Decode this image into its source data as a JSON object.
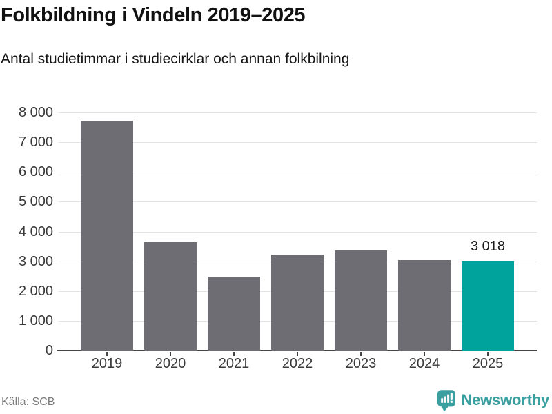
{
  "header": {
    "title": "Folkbildning i Vindeln 2019–2025",
    "subtitle": "Antal studietimmar i studiecirklar och annan folkbilning"
  },
  "chart_data": {
    "type": "bar",
    "title": "Folkbildning i Vindeln 2019–2025",
    "subtitle": "Antal studietimmar i studiecirklar och annan folkbilning",
    "categories": [
      "2019",
      "2020",
      "2021",
      "2022",
      "2023",
      "2024",
      "2025"
    ],
    "values": [
      7730,
      3650,
      2480,
      3230,
      3370,
      3040,
      3018
    ],
    "ylim": [
      0,
      8000
    ],
    "ytick_step": 1000,
    "ytick_labels": [
      "0",
      "1 000",
      "2 000",
      "3 000",
      "4 000",
      "5 000",
      "6 000",
      "7 000",
      "8 000"
    ],
    "grid": true,
    "legend": false,
    "highlight_index": 6,
    "annotation": {
      "index": 6,
      "label": "3 018"
    },
    "colors": {
      "bar": "#6e6d73",
      "highlight": "#00a39b",
      "gridline": "#e3e3e3",
      "axis": "#454545",
      "tick_label": "#3a3a3a",
      "annotation": "#1a1a1a"
    }
  },
  "footer": {
    "source": "Källa: SCB",
    "brand": "Newsworthy",
    "brand_color": "#3aa09f"
  }
}
